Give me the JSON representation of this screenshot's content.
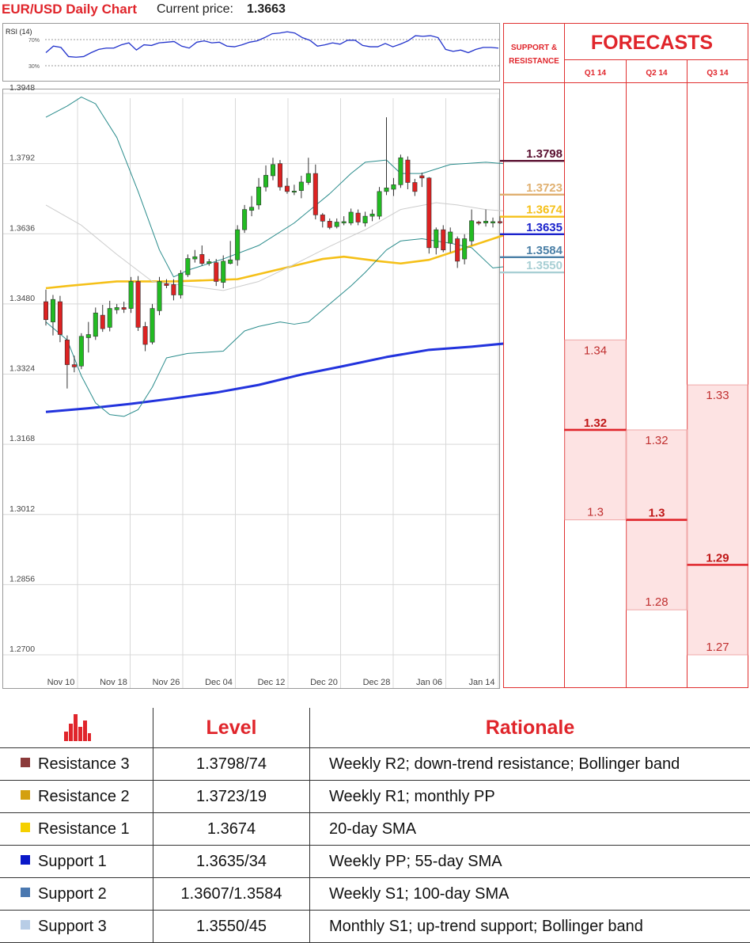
{
  "header": {
    "pair_title": "EUR/USD Daily Chart",
    "price_label": "Current price:",
    "price_value": "1.3663"
  },
  "rsi": {
    "label": "RSI (14)",
    "levels": [
      "70%",
      "30%"
    ],
    "values": [
      50,
      60,
      58,
      44,
      43,
      44,
      50,
      55,
      57,
      57,
      62,
      65,
      54,
      62,
      61,
      65,
      66,
      67,
      60,
      57,
      66,
      68,
      65,
      66,
      60,
      59,
      62,
      66,
      68,
      73,
      79,
      80,
      82,
      80,
      73,
      69,
      60,
      62,
      65,
      63,
      69,
      69,
      61,
      59,
      59,
      64,
      59,
      63,
      68,
      76,
      75,
      76,
      73,
      55,
      52,
      54,
      50,
      55,
      58,
      58,
      57
    ]
  },
  "chart_data": {
    "type": "candlestick",
    "title": "EUR/USD Daily Chart",
    "ylim": [
      1.27,
      1.4005
    ],
    "y_ticks": [
      "1.3948",
      "1.3792",
      "1.3636",
      "1.3480",
      "1.3324",
      "1.3168",
      "1.3012",
      "1.2856",
      "1.2700"
    ],
    "x_ticks": [
      "Nov 10",
      "Nov 18",
      "Nov 26",
      "Dec 04",
      "Dec 12",
      "Dec 20",
      "Dec 28",
      "Jan 06",
      "Jan 14"
    ],
    "candles": [
      [
        1.3485,
        1.3512,
        1.3432,
        1.3445
      ],
      [
        1.344,
        1.35,
        1.341,
        1.349
      ],
      [
        1.3485,
        1.3498,
        1.3395,
        1.3412
      ],
      [
        1.34,
        1.341,
        1.3292,
        1.3345
      ],
      [
        1.3345,
        1.3365,
        1.3328,
        1.334
      ],
      [
        1.3342,
        1.3415,
        1.3335,
        1.3408
      ],
      [
        1.3405,
        1.344,
        1.3372,
        1.3412
      ],
      [
        1.3408,
        1.3472,
        1.34,
        1.346
      ],
      [
        1.3455,
        1.3478,
        1.3418,
        1.3425
      ],
      [
        1.3428,
        1.3487,
        1.3419,
        1.347
      ],
      [
        1.3467,
        1.348,
        1.3458,
        1.3472
      ],
      [
        1.3472,
        1.3485,
        1.346,
        1.3468
      ],
      [
        1.347,
        1.354,
        1.346,
        1.353
      ],
      [
        1.353,
        1.3542,
        1.342,
        1.3428
      ],
      [
        1.343,
        1.344,
        1.3375,
        1.339
      ],
      [
        1.3395,
        1.348,
        1.339,
        1.347
      ],
      [
        1.3465,
        1.354,
        1.3455,
        1.353
      ],
      [
        1.3525,
        1.3535,
        1.3515,
        1.3521
      ],
      [
        1.3523,
        1.3535,
        1.3488,
        1.35
      ],
      [
        1.35,
        1.3555,
        1.3492,
        1.3548
      ],
      [
        1.3545,
        1.359,
        1.354,
        1.3581
      ],
      [
        1.358,
        1.36,
        1.3572,
        1.3585
      ],
      [
        1.359,
        1.361,
        1.3565,
        1.357
      ],
      [
        1.357,
        1.358,
        1.3565,
        1.3574
      ],
      [
        1.3572,
        1.358,
        1.352,
        1.353
      ],
      [
        1.3528,
        1.3588,
        1.3515,
        1.3575
      ],
      [
        1.357,
        1.362,
        1.3568,
        1.3578
      ],
      [
        1.3578,
        1.3655,
        1.3565,
        1.3645
      ],
      [
        1.3645,
        1.37,
        1.3638,
        1.369
      ],
      [
        1.3688,
        1.372,
        1.3675,
        1.3695
      ],
      [
        1.37,
        1.376,
        1.369,
        1.374
      ],
      [
        1.374,
        1.3788,
        1.373,
        1.3766
      ],
      [
        1.3765,
        1.3805,
        1.3755,
        1.379
      ],
      [
        1.3792,
        1.38,
        1.3732,
        1.374
      ],
      [
        1.3742,
        1.376,
        1.3725,
        1.373
      ],
      [
        1.373,
        1.3745,
        1.3722,
        1.3731
      ],
      [
        1.3732,
        1.3765,
        1.3715,
        1.3751
      ],
      [
        1.375,
        1.3805,
        1.3745,
        1.377
      ],
      [
        1.377,
        1.379,
        1.3668,
        1.3678
      ],
      [
        1.3678,
        1.3682,
        1.365,
        1.3664
      ],
      [
        1.3664,
        1.367,
        1.3646,
        1.365
      ],
      [
        1.3652,
        1.367,
        1.3648,
        1.3662
      ],
      [
        1.366,
        1.3675,
        1.3655,
        1.3663
      ],
      [
        1.366,
        1.3692,
        1.3655,
        1.3684
      ],
      [
        1.3682,
        1.369,
        1.3655,
        1.3662
      ],
      [
        1.366,
        1.3685,
        1.3652,
        1.3675
      ],
      [
        1.3675,
        1.369,
        1.3664,
        1.368
      ],
      [
        1.3675,
        1.374,
        1.3668,
        1.373
      ],
      [
        1.373,
        1.3895,
        1.3722,
        1.3738
      ],
      [
        1.3735,
        1.376,
        1.372,
        1.3745
      ],
      [
        1.3745,
        1.3812,
        1.3738,
        1.3805
      ],
      [
        1.38,
        1.3808,
        1.3735,
        1.375
      ],
      [
        1.375,
        1.3758,
        1.372,
        1.373
      ],
      [
        1.3765,
        1.3772,
        1.374,
        1.376
      ],
      [
        1.376,
        1.3762,
        1.3592,
        1.3605
      ],
      [
        1.3605,
        1.365,
        1.359,
        1.3645
      ],
      [
        1.3645,
        1.3655,
        1.3595,
        1.36
      ],
      [
        1.3615,
        1.365,
        1.3595,
        1.364
      ],
      [
        1.3625,
        1.363,
        1.356,
        1.3575
      ],
      [
        1.358,
        1.3635,
        1.3568,
        1.3625
      ],
      [
        1.362,
        1.369,
        1.361,
        1.3665
      ],
      [
        1.3662,
        1.3665,
        1.3655,
        1.366
      ],
      [
        1.366,
        1.369,
        1.3652,
        1.3664
      ],
      [
        1.366,
        1.3672,
        1.365,
        1.3663
      ],
      [
        1.3663,
        1.3675,
        1.3658,
        1.3662
      ]
    ],
    "series": [
      {
        "name": "",
        "color": "#f5c018",
        "values": [
          [
            0,
            1.3515
          ],
          [
            3,
            1.352
          ],
          [
            10,
            1.353
          ],
          [
            18,
            1.353
          ],
          [
            27,
            1.3535
          ],
          [
            35,
            1.3565
          ],
          [
            39,
            1.358
          ],
          [
            42,
            1.3585
          ],
          [
            47,
            1.3575
          ],
          [
            50,
            1.357
          ],
          [
            54,
            1.3578
          ],
          [
            59,
            1.3604
          ],
          [
            64,
            1.363
          ],
          [
            69,
            1.3655
          ]
        ]
      },
      {
        "name": "",
        "color": "#2233dd",
        "values": [
          [
            0,
            1.324
          ],
          [
            6,
            1.3248
          ],
          [
            12,
            1.3258
          ],
          [
            18,
            1.327
          ],
          [
            24,
            1.3283
          ],
          [
            30,
            1.33
          ],
          [
            36,
            1.3323
          ],
          [
            42,
            1.3342
          ],
          [
            48,
            1.3362
          ],
          [
            54,
            1.3378
          ],
          [
            60,
            1.3385
          ],
          [
            66,
            1.3394
          ],
          [
            69,
            1.3408
          ]
        ]
      },
      {
        "name": "",
        "color": "#2a8c8c",
        "values": [
          [
            0,
            1.3895
          ],
          [
            3,
            1.392
          ],
          [
            5,
            1.394
          ],
          [
            7,
            1.3925
          ],
          [
            10,
            1.385
          ],
          [
            13,
            1.373
          ],
          [
            16,
            1.36
          ],
          [
            18,
            1.354
          ],
          [
            20,
            1.3555
          ],
          [
            25,
            1.358
          ],
          [
            30,
            1.361
          ],
          [
            35,
            1.366
          ],
          [
            40,
            1.3725
          ],
          [
            43,
            1.377
          ],
          [
            45,
            1.3795
          ],
          [
            48,
            1.38
          ],
          [
            50,
            1.377
          ],
          [
            53,
            1.377
          ],
          [
            57,
            1.379
          ],
          [
            62,
            1.3795
          ],
          [
            66,
            1.379
          ],
          [
            69,
            1.378
          ]
        ]
      },
      {
        "name": "",
        "color": "#2a8c8c",
        "values": [
          [
            0,
            1.344
          ],
          [
            3,
            1.34
          ],
          [
            5,
            1.332
          ],
          [
            7,
            1.326
          ],
          [
            9,
            1.3234
          ],
          [
            11,
            1.323
          ],
          [
            13,
            1.3245
          ],
          [
            15,
            1.3295
          ],
          [
            17,
            1.336
          ],
          [
            20,
            1.337
          ],
          [
            25,
            1.3375
          ],
          [
            28,
            1.342
          ],
          [
            30,
            1.343
          ],
          [
            33,
            1.344
          ],
          [
            35,
            1.3435
          ],
          [
            37,
            1.344
          ],
          [
            40,
            1.348
          ],
          [
            43,
            1.352
          ],
          [
            45,
            1.355
          ],
          [
            48,
            1.36
          ],
          [
            50,
            1.362
          ],
          [
            53,
            1.3625
          ],
          [
            55,
            1.362
          ],
          [
            57,
            1.3615
          ],
          [
            60,
            1.3605
          ],
          [
            63,
            1.356
          ],
          [
            66,
            1.3565
          ],
          [
            69,
            1.356
          ]
        ]
      },
      {
        "name": "",
        "color": "#cccccc",
        "values": [
          [
            0,
            1.37
          ],
          [
            5,
            1.3655
          ],
          [
            10,
            1.359
          ],
          [
            15,
            1.353
          ],
          [
            20,
            1.352
          ],
          [
            25,
            1.351
          ],
          [
            30,
            1.353
          ],
          [
            35,
            1.3568
          ],
          [
            40,
            1.3608
          ],
          [
            45,
            1.3645
          ],
          [
            50,
            1.369
          ],
          [
            55,
            1.3705
          ],
          [
            58,
            1.37
          ],
          [
            62,
            1.369
          ],
          [
            66,
            1.3685
          ],
          [
            69,
            1.368
          ]
        ]
      }
    ]
  },
  "sr_panel": {
    "title_line1": "SUPPORT &",
    "title_line2": "RESISTANCE",
    "levels": [
      {
        "value": 1.3798,
        "label": "1.3798",
        "color": "#5a1030"
      },
      {
        "value": 1.3723,
        "label": "1.3723",
        "color": "#e0b070"
      },
      {
        "value": 1.3674,
        "label": "1.3674",
        "color": "#f5c018"
      },
      {
        "value": 1.3635,
        "label": "1.3635",
        "color": "#1a22cc"
      },
      {
        "value": 1.3584,
        "label": "1.3584",
        "color": "#4a7fa6"
      },
      {
        "value": 1.355,
        "label": "1.3550",
        "color": "#a8cfd4"
      }
    ]
  },
  "forecasts": {
    "title": "FORECASTS",
    "columns": [
      {
        "label": "Q1 14",
        "high": "1.34",
        "mid": "1.32",
        "low": "1.3",
        "high_v": 1.34,
        "mid_v": 1.32,
        "low_v": 1.3
      },
      {
        "label": "Q2 14",
        "high": "1.32",
        "mid": "1.3",
        "low": "1.28",
        "high_v": 1.32,
        "mid_v": 1.3,
        "low_v": 1.28
      },
      {
        "label": "Q3 14",
        "high": "1.33",
        "mid": "1.29",
        "low": "1.27",
        "high_v": 1.33,
        "mid_v": 1.29,
        "low_v": 1.27
      }
    ]
  },
  "table": {
    "headers": {
      "icon": "bar-chart-icon",
      "level": "Level",
      "rationale": "Rationale"
    },
    "rows": [
      {
        "name": "Resistance 3",
        "color": "#8b3a3a",
        "level": "1.3798/74",
        "rationale": "Weekly R2; down-trend resistance; Bollinger band"
      },
      {
        "name": "Resistance 2",
        "color": "#d4a010",
        "level": "1.3723/19",
        "rationale": "Weekly R1; monthly PP"
      },
      {
        "name": "Resistance 1",
        "color": "#f5d000",
        "level": "1.3674",
        "rationale": "20-day SMA"
      },
      {
        "name": "Support 1",
        "color": "#0a18c8",
        "level": "1.3635/34",
        "rationale": "Weekly PP; 55-day SMA"
      },
      {
        "name": "Support 2",
        "color": "#4a78b0",
        "level": "1.3607/1.3584",
        "rationale": "Weekly S1; 100-day SMA"
      },
      {
        "name": "Support 3",
        "color": "#b8cde6",
        "level": "1.3550/45",
        "rationale": "Monthly S1; up-trend support; Bollinger band"
      }
    ]
  }
}
